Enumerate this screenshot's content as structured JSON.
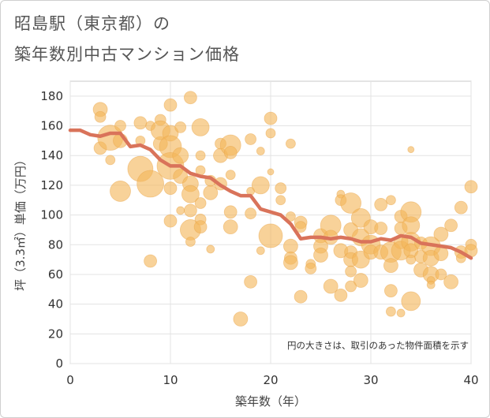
{
  "header": {
    "title_line1": "昭島駅（東京都）の",
    "title_line2": "築年数別中古マンション価格"
  },
  "chart_data": {
    "type": "scatter",
    "xlabel": "築年数（年）",
    "ylabel": "坪（3.3㎡）単価（万円）",
    "xlim": [
      0,
      40
    ],
    "ylim": [
      0,
      190
    ],
    "x_ticks": [
      0,
      10,
      20,
      30,
      40
    ],
    "y_ticks": [
      0,
      20,
      40,
      60,
      80,
      100,
      120,
      140,
      160,
      180
    ],
    "grid": true,
    "note": "円の大きさは、取引のあった物件面積を示す",
    "colors": {
      "bubble": "#f3b65a",
      "trend": "#d9735a"
    },
    "trend_line": {
      "x": [
        0,
        1,
        2,
        3,
        4,
        5,
        6,
        7,
        8,
        9,
        10,
        11,
        12,
        13,
        14,
        15,
        16,
        17,
        18,
        19,
        20,
        21,
        22,
        23,
        24,
        25,
        26,
        27,
        28,
        29,
        30,
        31,
        32,
        33,
        34,
        35,
        36,
        37,
        38,
        39,
        40
      ],
      "y": [
        157,
        157,
        154,
        153,
        155,
        155,
        146,
        147,
        144,
        137,
        133,
        133,
        128,
        126,
        125,
        120,
        116,
        113,
        113,
        104,
        102,
        100,
        94,
        84,
        85,
        85,
        84,
        85,
        84,
        82,
        82,
        84,
        83,
        86,
        85,
        81,
        80,
        79,
        78,
        75,
        71
      ]
    },
    "points": [
      [
        3,
        171,
        9
      ],
      [
        3,
        166,
        7
      ],
      [
        3,
        145,
        8
      ],
      [
        4,
        152,
        16
      ],
      [
        4,
        137,
        6
      ],
      [
        5,
        160,
        7
      ],
      [
        5,
        116,
        13
      ],
      [
        5,
        150,
        9
      ],
      [
        7,
        162,
        8
      ],
      [
        7,
        131,
        16
      ],
      [
        7,
        150,
        6
      ],
      [
        8,
        121,
        17
      ],
      [
        8,
        69,
        8
      ],
      [
        8,
        160,
        6
      ],
      [
        9,
        164,
        7
      ],
      [
        9,
        148,
        9
      ],
      [
        9,
        157,
        12
      ],
      [
        10,
        174,
        8
      ],
      [
        10,
        155,
        10
      ],
      [
        10,
        146,
        14
      ],
      [
        10,
        133,
        17
      ],
      [
        10,
        118,
        8
      ],
      [
        10,
        96,
        8
      ],
      [
        11,
        140,
        10
      ],
      [
        11,
        159,
        7
      ],
      [
        11,
        103,
        5
      ],
      [
        11,
        126,
        9
      ],
      [
        12,
        179,
        8
      ],
      [
        12,
        121,
        10
      ],
      [
        12,
        114,
        11
      ],
      [
        12,
        90,
        13
      ],
      [
        12,
        82,
        6
      ],
      [
        12,
        103,
        8
      ],
      [
        13,
        140,
        6
      ],
      [
        13,
        159,
        11
      ],
      [
        13,
        130,
        6
      ],
      [
        13,
        108,
        7
      ],
      [
        13,
        97,
        7
      ],
      [
        13,
        92,
        8
      ],
      [
        14,
        77,
        5
      ],
      [
        14,
        115,
        9
      ],
      [
        14,
        123,
        7
      ],
      [
        15,
        148,
        7
      ],
      [
        15,
        140,
        9
      ],
      [
        15,
        121,
        8
      ],
      [
        16,
        147,
        13
      ],
      [
        16,
        142,
        8
      ],
      [
        16,
        102,
        8
      ],
      [
        16,
        92,
        9
      ],
      [
        16,
        127,
        6
      ],
      [
        17,
        30,
        9
      ],
      [
        18,
        116,
        5
      ],
      [
        18,
        151,
        7
      ],
      [
        18,
        101,
        7
      ],
      [
        18,
        55,
        8
      ],
      [
        19,
        143,
        5
      ],
      [
        19,
        120,
        11
      ],
      [
        19,
        76,
        5
      ],
      [
        20,
        165,
        8
      ],
      [
        20,
        155,
        6
      ],
      [
        20,
        129,
        4
      ],
      [
        20,
        86,
        15
      ],
      [
        21,
        118,
        7
      ],
      [
        21,
        110,
        6
      ],
      [
        22,
        148,
        6
      ],
      [
        22,
        99,
        6
      ],
      [
        22,
        79,
        9
      ],
      [
        22,
        71,
        8
      ],
      [
        22,
        68,
        9
      ],
      [
        23,
        95,
        8
      ],
      [
        23,
        92,
        7
      ],
      [
        23,
        45,
        8
      ],
      [
        24,
        67,
        6
      ],
      [
        24,
        64,
        7
      ],
      [
        25,
        86,
        9
      ],
      [
        25,
        79,
        9
      ],
      [
        25,
        73,
        9
      ],
      [
        26,
        93,
        13
      ],
      [
        26,
        85,
        9
      ],
      [
        26,
        52,
        9
      ],
      [
        27,
        46,
        8
      ],
      [
        27,
        76,
        9
      ],
      [
        27,
        114,
        5
      ],
      [
        27,
        110,
        7
      ],
      [
        28,
        108,
        13
      ],
      [
        28,
        90,
        9
      ],
      [
        28,
        75,
        8
      ],
      [
        28,
        70,
        9
      ],
      [
        28,
        62,
        7
      ],
      [
        28,
        52,
        7
      ],
      [
        29,
        98,
        12
      ],
      [
        29,
        85,
        11
      ],
      [
        29,
        70,
        11
      ],
      [
        29,
        56,
        9
      ],
      [
        30,
        80,
        12
      ],
      [
        30,
        75,
        9
      ],
      [
        30,
        92,
        9
      ],
      [
        31,
        107,
        8
      ],
      [
        31,
        91,
        8
      ],
      [
        31,
        75,
        9
      ],
      [
        32,
        110,
        6
      ],
      [
        32,
        75,
        13
      ],
      [
        32,
        49,
        8
      ],
      [
        32,
        66,
        9
      ],
      [
        32,
        35,
        6
      ],
      [
        33,
        99,
        8
      ],
      [
        33,
        91,
        8
      ],
      [
        33,
        82,
        9
      ],
      [
        33,
        76,
        12
      ],
      [
        33,
        34,
        5
      ],
      [
        34,
        144,
        4
      ],
      [
        34,
        102,
        13
      ],
      [
        34,
        93,
        11
      ],
      [
        34,
        82,
        12
      ],
      [
        34,
        76,
        9
      ],
      [
        34,
        70,
        6
      ],
      [
        34,
        42,
        12
      ],
      [
        35,
        81,
        8
      ],
      [
        35,
        72,
        8
      ],
      [
        35,
        63,
        9
      ],
      [
        36,
        79,
        12
      ],
      [
        36,
        71,
        10
      ],
      [
        36,
        60,
        10
      ],
      [
        36,
        56,
        5
      ],
      [
        36,
        53,
        5
      ],
      [
        37,
        87,
        9
      ],
      [
        37,
        60,
        7
      ],
      [
        37,
        74,
        9
      ],
      [
        38,
        93,
        8
      ],
      [
        38,
        55,
        9
      ],
      [
        39,
        105,
        8
      ],
      [
        39,
        75,
        8
      ],
      [
        39,
        71,
        6
      ],
      [
        40,
        119,
        8
      ],
      [
        40,
        80,
        7
      ],
      [
        40,
        76,
        8
      ]
    ]
  }
}
